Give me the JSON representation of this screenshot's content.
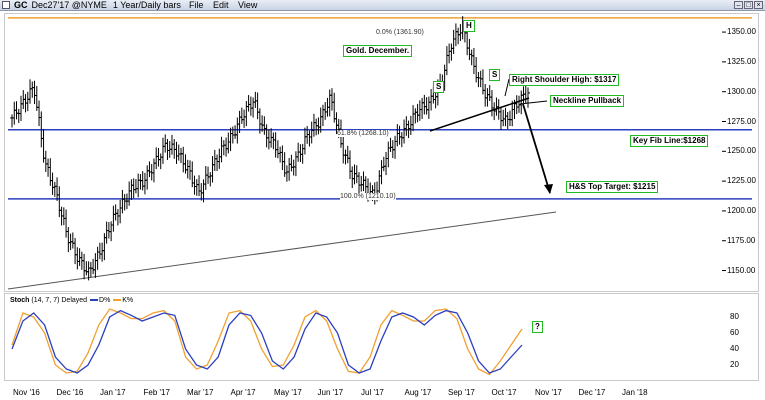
{
  "window": {
    "symbol": "GC",
    "contract": "Dec27'17 @NYME",
    "interval": "1 Year/Daily bars",
    "menu": [
      "File",
      "Edit",
      "View"
    ]
  },
  "colors": {
    "price_bars": "#000000",
    "fib_top_line": "#f0a030",
    "horizontal_lines": "#2b3fbf",
    "annotation_box": "#22bb22",
    "stoch_d": "#2b3fbf",
    "stoch_k": "#f0a030"
  },
  "chart_data": [
    {
      "type": "ohlc",
      "x": [
        "Nov 16",
        "Nov 16",
        "Nov 16",
        "Nov 16",
        "Dec 16",
        "Dec 16",
        "Dec 16",
        "Dec 16",
        "Jan 17",
        "Jan 17",
        "Jan 17",
        "Jan 17",
        "Feb 17",
        "Feb 17",
        "Feb 17",
        "Feb 17",
        "Mar 17",
        "Mar 17",
        "Mar 17",
        "Mar 17",
        "Apr 17",
        "Apr 17",
        "Apr 17",
        "Apr 17",
        "May 17",
        "May 17",
        "May 17",
        "May 17",
        "Jun 17",
        "Jun 17",
        "Jun 17",
        "Jun 17",
        "Jul 17",
        "Jul 17",
        "Jul 17",
        "Jul 17",
        "Aug 17",
        "Aug 17",
        "Aug 17",
        "Aug 17",
        "Sep 17",
        "Sep 17",
        "Sep 17",
        "Sep 17",
        "Oct 17",
        "Oct 17",
        "Oct 17",
        "Oct 17"
      ],
      "series": [
        {
          "close": [
            1278,
            1290,
            1304,
            1240,
            1215,
            1180,
            1160,
            1148,
            1165,
            1190,
            1205,
            1220,
            1225,
            1240,
            1255,
            1250,
            1235,
            1215,
            1232,
            1250,
            1262,
            1280,
            1293,
            1265,
            1255,
            1232,
            1245,
            1265,
            1275,
            1295,
            1255,
            1230,
            1222,
            1212,
            1245,
            1260,
            1270,
            1285,
            1290,
            1305,
            1340,
            1355,
            1322,
            1300,
            1285,
            1275,
            1290,
            1300
          ]
        }
      ],
      "title": "Gold. December.",
      "ylabel": "",
      "ylim": [
        1132,
        1366
      ],
      "y_ticks": [
        "1350.00",
        "1325.00",
        "1300.00",
        "1275.00",
        "1250.00",
        "1225.00",
        "1200.00",
        "1175.00",
        "1150.00"
      ],
      "x_ticks": [
        "Nov '16",
        "Dec '16",
        "Jan '17",
        "Feb '17",
        "Mar '17",
        "Apr '17",
        "May '17",
        "Jun '17",
        "Jul '17",
        "Aug '17",
        "Sep '17",
        "Oct '17",
        "Nov '17",
        "Dec '17",
        "Jan '18"
      ],
      "fib_levels": [
        {
          "label": "0.0% (1361.90)",
          "value": 1361.9
        },
        {
          "label": "61.8% (1268.10)",
          "value": 1268.1
        },
        {
          "label": "100.0% (1210.10)",
          "value": 1210.1
        }
      ],
      "annotations": {
        "title_box": "Gold. December.",
        "head": "H",
        "left_shoulder": "S",
        "right_shoulder": "S",
        "right_shoulder_high": "Right Shoulder High: $1317",
        "neckline": "Neckline Pullback",
        "key_fib": "Key Fib Line:$1268",
        "target": "H&S Top Target: $1215"
      },
      "grid": false
    },
    {
      "type": "line",
      "title": "Stoch",
      "params": "(14, 7, 7) Delayed",
      "legend": [
        "D%",
        "K%"
      ],
      "ylim": [
        0,
        100
      ],
      "y_ticks": [
        "80",
        "60",
        "40",
        "20"
      ],
      "series": [
        {
          "name": "D%",
          "values": [
            40,
            75,
            85,
            70,
            30,
            15,
            10,
            20,
            45,
            80,
            88,
            82,
            75,
            80,
            85,
            82,
            40,
            20,
            15,
            30,
            70,
            85,
            82,
            60,
            25,
            15,
            30,
            65,
            85,
            80,
            60,
            20,
            10,
            15,
            50,
            80,
            85,
            80,
            70,
            82,
            88,
            85,
            60,
            25,
            10,
            15,
            30,
            45
          ]
        },
        {
          "name": "K%",
          "values": [
            45,
            85,
            80,
            60,
            20,
            10,
            12,
            35,
            70,
            90,
            85,
            78,
            78,
            85,
            88,
            75,
            30,
            15,
            20,
            50,
            85,
            88,
            75,
            40,
            18,
            20,
            45,
            80,
            88,
            75,
            40,
            12,
            10,
            30,
            70,
            88,
            82,
            75,
            75,
            88,
            90,
            78,
            40,
            15,
            8,
            25,
            45,
            65
          ]
        }
      ],
      "annotation": "?"
    }
  ]
}
